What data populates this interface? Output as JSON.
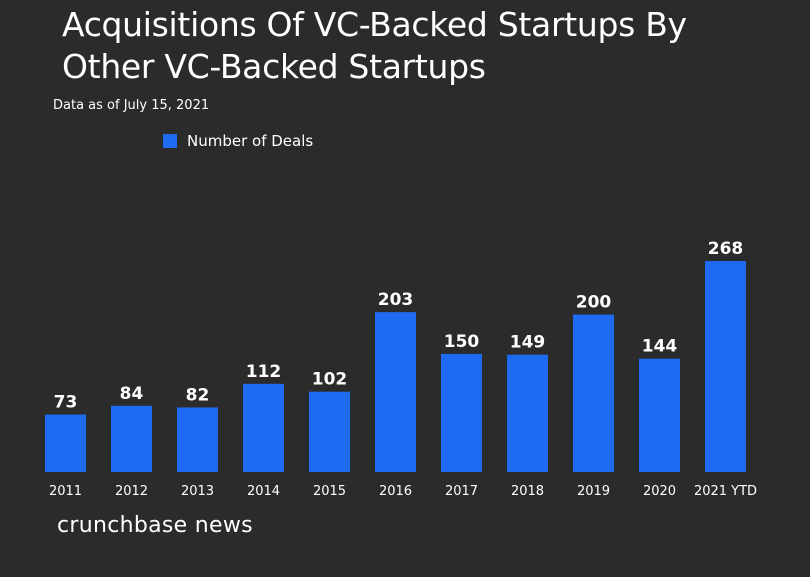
{
  "header": {
    "title": "Acquisitions Of VC-Backed Startups By Other VC-Backed Startups",
    "subtitle": "Data as of July 15, 2021"
  },
  "legend": {
    "label": "Number of Deals",
    "color": "#1e6bf2"
  },
  "footer": {
    "brand": "crunchbase news"
  },
  "chart_data": {
    "type": "bar",
    "categories": [
      "2011",
      "2012",
      "2013",
      "2014",
      "2015",
      "2016",
      "2017",
      "2018",
      "2019",
      "2020",
      "2021 YTD"
    ],
    "series": [
      {
        "name": "Number of Deals",
        "values": [
          73,
          84,
          82,
          112,
          102,
          203,
          150,
          149,
          200,
          144,
          268
        ],
        "color": "#1e6bf2"
      }
    ],
    "title": "Acquisitions Of VC-Backed Startups By Other VC-Backed Startups",
    "subtitle": "Data as of July 15, 2021",
    "xlabel": "",
    "ylabel": "",
    "ylim": [
      0,
      268
    ],
    "grid": false,
    "legend_position": "top-left",
    "data_labels": true
  }
}
